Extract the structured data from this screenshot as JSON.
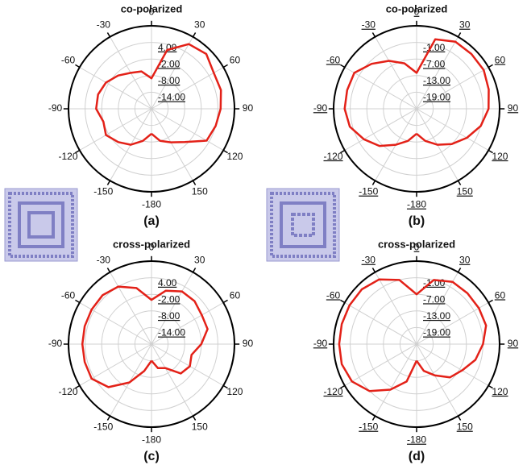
{
  "chart_data": [
    {
      "type": "polar",
      "title": "co-polarized",
      "caption": "(a)",
      "color": "#e32118",
      "x": [
        -180,
        -165,
        -150,
        -135,
        -120,
        -105,
        -90,
        -75,
        -60,
        -45,
        -30,
        -15,
        0,
        15,
        30,
        45,
        60,
        75,
        90,
        105,
        120,
        135,
        150,
        165,
        180
      ],
      "values": [
        -11,
        -8,
        -5,
        -3,
        -1,
        -2,
        0,
        0,
        -1,
        -3,
        -5,
        -6,
        -9,
        2,
        7,
        8,
        6,
        6,
        5,
        4,
        3,
        -3,
        -6,
        -8,
        -11
      ],
      "rlim": [
        -20,
        10
      ],
      "rticks": [
        {
          "value": 4,
          "label": "4.00"
        },
        {
          "value": -2,
          "label": "-2.00"
        },
        {
          "value": -8,
          "label": "-8.00"
        },
        {
          "value": -14,
          "label": "-14.00"
        }
      ],
      "xticks": [
        0,
        30,
        60,
        90,
        120,
        150,
        -180,
        -150,
        -120,
        -90,
        -60,
        -30
      ]
    },
    {
      "type": "polar",
      "title": "co-polarized",
      "caption": "(b)",
      "color": "#e32118",
      "x": [
        -180,
        -165,
        -150,
        -135,
        -120,
        -105,
        -90,
        -75,
        -60,
        -45,
        -30,
        -15,
        0,
        15,
        30,
        45,
        60,
        75,
        90,
        105,
        120,
        135,
        150,
        165,
        180
      ],
      "values": [
        -16,
        -13,
        -10,
        -6,
        -3,
        0,
        1,
        1,
        1,
        -2,
        -5,
        -8,
        -12,
        1,
        3,
        3,
        3,
        2,
        1,
        -1,
        -4,
        -7,
        -10,
        -13,
        -16
      ],
      "rlim": [
        -25,
        5
      ],
      "rticks": [
        {
          "value": -1,
          "label": "-1.00"
        },
        {
          "value": -7,
          "label": "-7.00"
        },
        {
          "value": -13,
          "label": "-13.00"
        },
        {
          "value": -19,
          "label": "-19.00"
        }
      ],
      "xticks": [
        0,
        30,
        60,
        90,
        120,
        150,
        -180,
        -150,
        -120,
        -90,
        -60,
        -30
      ]
    },
    {
      "type": "polar",
      "title": "cross-polarized",
      "caption": "(c)",
      "color": "#e32118",
      "x": [
        -180,
        -165,
        -150,
        -135,
        -120,
        -105,
        -90,
        -75,
        -60,
        -45,
        -30,
        -15,
        0,
        15,
        30,
        45,
        60,
        75,
        90,
        105,
        120,
        135,
        150,
        165,
        180
      ],
      "values": [
        -14,
        -10,
        -4,
        2,
        5,
        5,
        5,
        5,
        5,
        5,
        4,
        1,
        -4,
        0,
        2,
        2,
        1,
        1,
        -2,
        -5,
        -4,
        -5,
        -10,
        -11,
        -14
      ],
      "rlim": [
        -20,
        10
      ],
      "rticks": [
        {
          "value": 4,
          "label": "4.00"
        },
        {
          "value": -2,
          "label": "-2.00"
        },
        {
          "value": -8,
          "label": "-8.00"
        },
        {
          "value": -14,
          "label": "-14.00"
        }
      ],
      "xticks": [
        0,
        30,
        60,
        90,
        120,
        150,
        -180,
        -150,
        -120,
        -90,
        -60,
        -30
      ]
    },
    {
      "type": "polar",
      "title": "cross-polarized",
      "caption": "(d)",
      "color": "#e32118",
      "x": [
        -180,
        -165,
        -150,
        -135,
        -120,
        -105,
        -90,
        -75,
        -60,
        -45,
        -30,
        -15,
        0,
        15,
        30,
        45,
        60,
        75,
        90,
        105,
        120,
        135,
        150,
        165,
        180
      ],
      "values": [
        -19,
        -11,
        -6,
        -1,
        2,
        3,
        3,
        3,
        3,
        3,
        2,
        -1,
        -7,
        -1,
        1,
        1,
        1,
        1,
        -1,
        -3,
        -6,
        -8,
        -12,
        -15,
        -19
      ],
      "rlim": [
        -25,
        5
      ],
      "rticks": [
        {
          "value": -1,
          "label": "-1.00"
        },
        {
          "value": -7,
          "label": "-7.00"
        },
        {
          "value": -13,
          "label": "-13.00"
        },
        {
          "value": -19,
          "label": "-19.00"
        }
      ],
      "xticks": [
        0,
        30,
        60,
        90,
        120,
        150,
        -180,
        -150,
        -120,
        -90,
        -60,
        -30
      ]
    }
  ]
}
